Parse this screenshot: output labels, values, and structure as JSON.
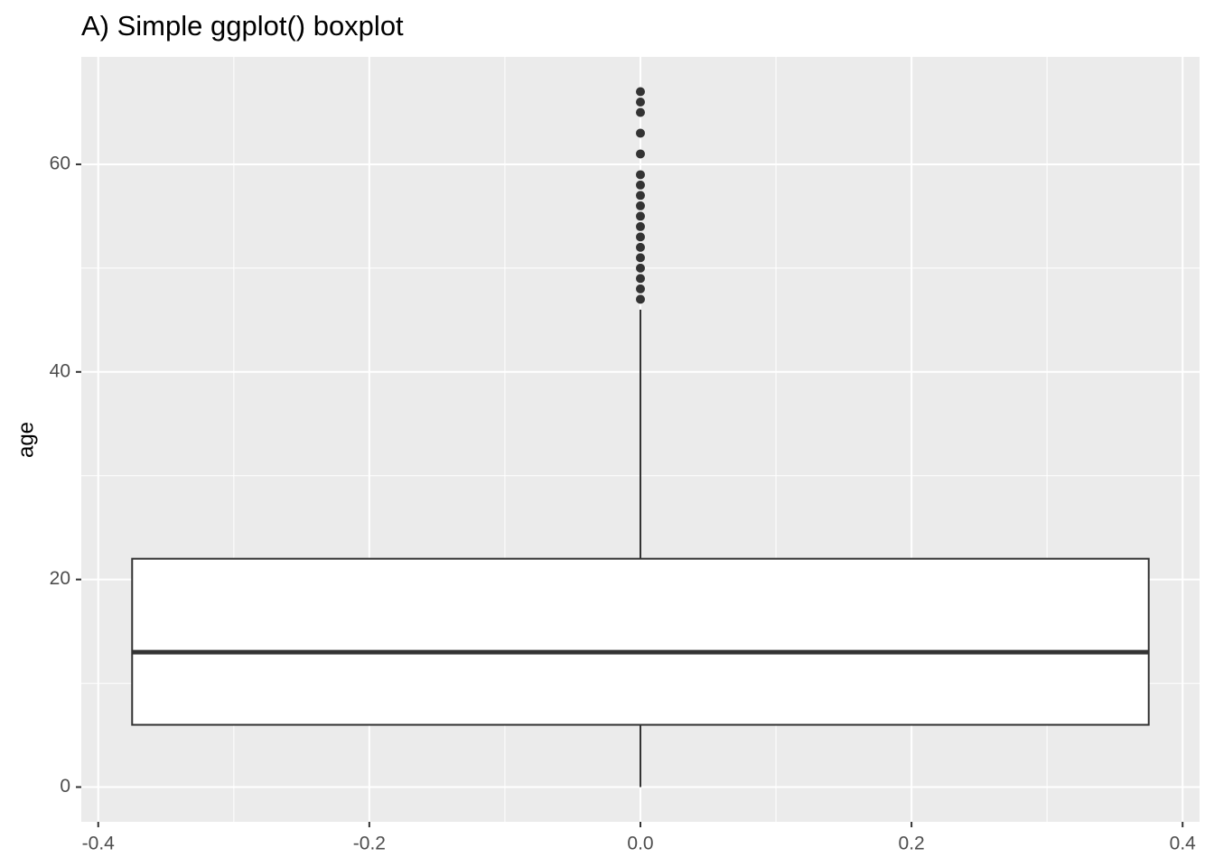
{
  "chart_data": {
    "type": "boxplot",
    "title": "A) Simple ggplot() boxplot",
    "y_label": "age",
    "x": 0,
    "width": 0.75,
    "whisker_low": 0,
    "q1": 6,
    "median": 13,
    "q3": 22,
    "whisker_high": 46,
    "outliers": [
      47,
      48,
      49,
      50,
      51,
      52,
      53,
      54,
      55,
      56,
      57,
      58,
      59,
      61,
      63,
      65,
      66,
      67
    ],
    "color": "#333333",
    "fill": "#ffffff",
    "panel_color": "#ebebeb",
    "xlim": [
      -0.4125,
      0.4125
    ],
    "xticks": [
      -0.4,
      -0.2,
      {
        "value": 0,
        "label": "0.0"
      },
      0.2,
      0.4
    ],
    "xminor": [
      -0.3,
      -0.1,
      0.1,
      0.3
    ],
    "ylim": [
      -3.35,
      70.35
    ],
    "yticks": [
      0,
      20,
      40,
      60
    ],
    "yminor": [
      10,
      30,
      50
    ],
    "grid": true
  }
}
